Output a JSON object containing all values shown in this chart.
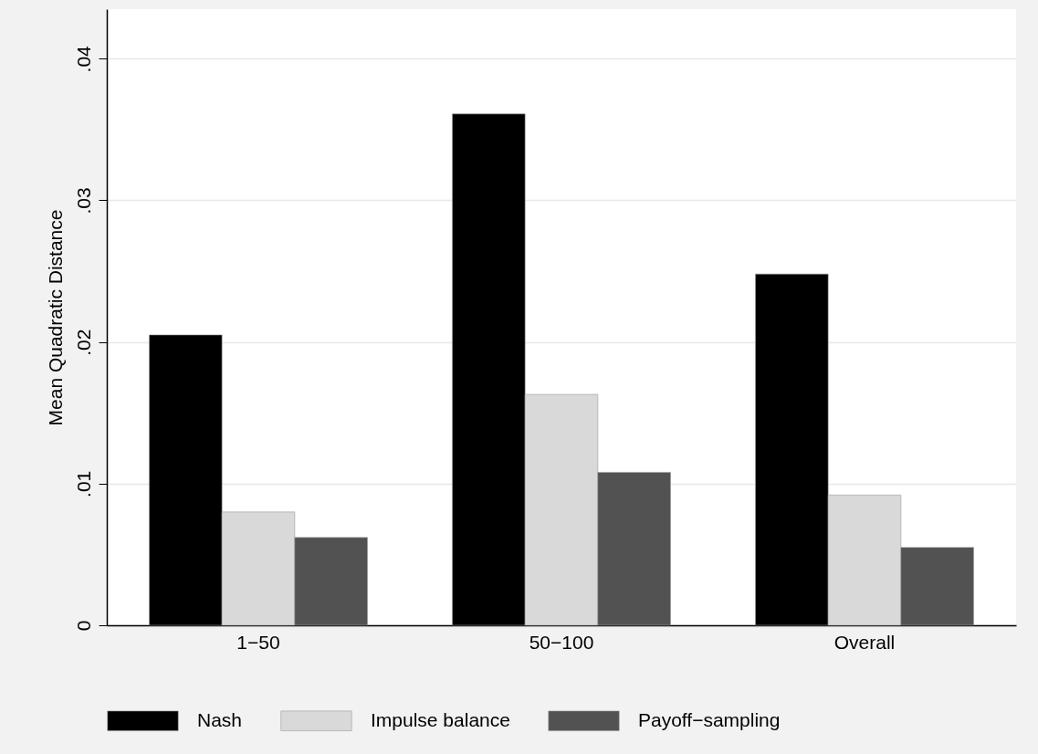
{
  "chart_data": {
    "type": "bar",
    "ylabel": "Mean Quadratic Distance",
    "categories": [
      "1−50",
      "50−100",
      "Overall"
    ],
    "series": [
      {
        "name": "Nash",
        "color": "#000000",
        "values": [
          0.0205,
          0.0361,
          0.0248
        ]
      },
      {
        "name": "Impulse balance",
        "color": "#d9d9d9",
        "values": [
          0.008,
          0.0163,
          0.0092
        ]
      },
      {
        "name": "Payoff−sampling",
        "color": "#525252",
        "values": [
          0.0062,
          0.0108,
          0.0055
        ]
      }
    ],
    "ylim": [
      0,
      0.0435
    ],
    "yticks": [
      0,
      {
        "value": 0.01,
        "label": ".01"
      },
      {
        "value": 0.02,
        "label": ".02"
      },
      {
        "value": 0.03,
        "label": ".03"
      },
      {
        "value": 0.04,
        "label": ".04"
      }
    ],
    "grid": "y",
    "legend": "bottom"
  }
}
